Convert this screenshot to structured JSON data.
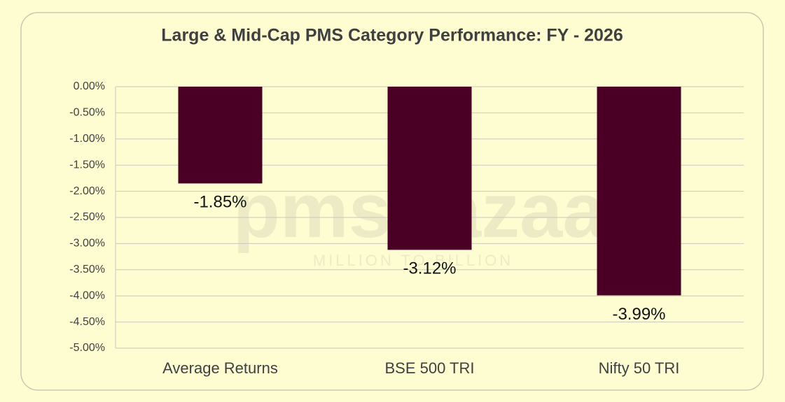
{
  "chart_data": {
    "type": "bar",
    "title": "Large & Mid-Cap PMS Category Performance: FY - 2026",
    "categories": [
      "Average Returns",
      "BSE 500 TRI",
      "Nifty 50 TRI"
    ],
    "values": [
      -1.85,
      -3.12,
      -3.99
    ],
    "value_labels": [
      "-1.85%",
      "-3.12%",
      "-3.99%"
    ],
    "color": "#4a0024",
    "ylim": [
      -5,
      0
    ],
    "yticks": [
      {
        "value": 0,
        "label": "0.00%"
      },
      {
        "value": -0.5,
        "label": "-0.50%"
      },
      {
        "value": -1,
        "label": "-1.00%"
      },
      {
        "value": -1.5,
        "label": "-1.50%"
      },
      {
        "value": -2,
        "label": "-2.00%"
      },
      {
        "value": -2.5,
        "label": "-2.50%"
      },
      {
        "value": -3,
        "label": "-3.00%"
      },
      {
        "value": -3.5,
        "label": "-3.50%"
      },
      {
        "value": -4,
        "label": "-4.00%"
      },
      {
        "value": -4.5,
        "label": "-4.50%"
      },
      {
        "value": -5,
        "label": "-5.00%"
      }
    ],
    "grid": true,
    "watermark": [
      "pmsbazaar",
      "MILLION TO BILLION"
    ]
  }
}
